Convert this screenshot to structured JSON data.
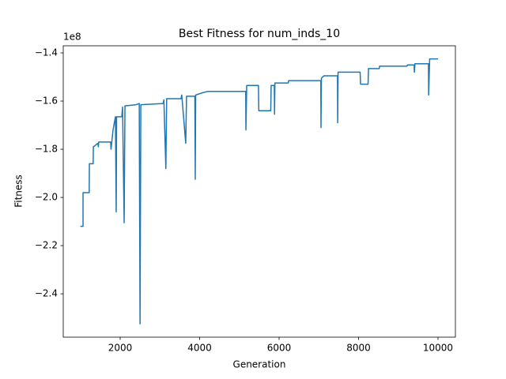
{
  "chart_data": {
    "type": "line",
    "title": "Best Fitness for num_inds_10",
    "x_label": "Generation",
    "y_label": "Fitness",
    "y_offset_text": "1e8",
    "color": "#1f77b4",
    "x": [
      1000,
      1065,
      1065,
      1220,
      1225,
      1320,
      1325,
      1440,
      1450,
      1460,
      1760,
      1770,
      1820,
      1880,
      1900,
      1910,
      2040,
      2060,
      2100,
      2120,
      2400,
      2480,
      2500,
      2520,
      3080,
      3100,
      3150,
      3170,
      3530,
      3550,
      3650,
      3670,
      3880,
      3890,
      3900,
      4080,
      4200,
      5160,
      5165,
      5185,
      5480,
      5490,
      5790,
      5800,
      5880,
      5885,
      5895,
      6230,
      6240,
      7050,
      7055,
      7065,
      7130,
      7470,
      7475,
      7485,
      8040,
      8050,
      8240,
      8250,
      8520,
      8530,
      9220,
      9230,
      9400,
      9405,
      9420,
      9760,
      9765,
      9790,
      10000
    ],
    "values": [
      -2.12,
      -2.12,
      -1.98,
      -1.98,
      -1.86,
      -1.86,
      -1.79,
      -1.775,
      -1.79,
      -1.77,
      -1.77,
      -1.8,
      -1.72,
      -1.665,
      -2.06,
      -1.665,
      -1.665,
      -1.625,
      -2.105,
      -1.62,
      -1.615,
      -1.61,
      -2.525,
      -1.615,
      -1.61,
      -1.595,
      -1.88,
      -1.59,
      -1.59,
      -1.575,
      -1.775,
      -1.58,
      -1.58,
      -1.925,
      -1.575,
      -1.565,
      -1.56,
      -1.56,
      -1.72,
      -1.535,
      -1.535,
      -1.64,
      -1.64,
      -1.535,
      -1.535,
      -1.655,
      -1.525,
      -1.525,
      -1.515,
      -1.515,
      -1.71,
      -1.505,
      -1.495,
      -1.495,
      -1.69,
      -1.48,
      -1.48,
      -1.53,
      -1.53,
      -1.465,
      -1.465,
      -1.455,
      -1.455,
      -1.45,
      -1.45,
      -1.48,
      -1.445,
      -1.445,
      -1.575,
      -1.425,
      -1.425
    ],
    "xlim": [
      567,
      10438
    ],
    "ylim": [
      -2.58,
      -1.3705
    ],
    "xticks": [
      2000,
      4000,
      6000,
      8000,
      10000
    ],
    "yticks": [
      {
        "value": -2.4,
        "label": "−2.4"
      },
      {
        "value": -2.2,
        "label": "−2.2"
      },
      {
        "value": -2.0,
        "label": "−2.0"
      },
      {
        "value": -1.8,
        "label": "−1.8"
      },
      {
        "value": -1.6,
        "label": "−1.6"
      },
      {
        "value": -1.4,
        "label": "−1.4"
      }
    ]
  }
}
